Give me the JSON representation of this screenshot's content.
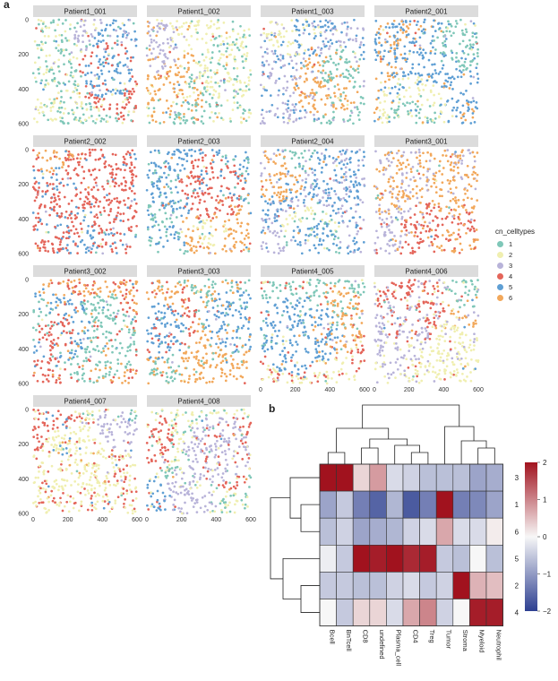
{
  "figure": {
    "panel_a_label": "a",
    "panel_b_label": "b"
  },
  "chart_data": [
    {
      "type": "scatter",
      "panel": "a",
      "description_of_content": "Spatial scatter of cells per sample colored by cellular neighborhood",
      "panels": [
        "Patient1_001",
        "Patient1_002",
        "Patient1_003",
        "Patient2_001",
        "Patient2_002",
        "Patient2_003",
        "Patient2_004",
        "Patient3_001",
        "Patient3_002",
        "Patient3_003",
        "Patient4_005",
        "Patient4_006",
        "Patient4_007",
        "Patient4_008"
      ],
      "y_ticks": [
        0,
        200,
        400,
        600
      ],
      "x_ticks": [
        0,
        200,
        400,
        600
      ],
      "xlim": [
        0,
        600
      ],
      "ylim": [
        0,
        600
      ],
      "legend": {
        "title": "cn_celltypes",
        "placement": "right",
        "entries": [
          {
            "label": "1",
            "color": "#7fc7b8"
          },
          {
            "label": "2",
            "color": "#f0efb0"
          },
          {
            "label": "3",
            "color": "#b8b3d9"
          },
          {
            "label": "4",
            "color": "#e4655a"
          },
          {
            "label": "5",
            "color": "#5f9fd4"
          },
          {
            "label": "6",
            "color": "#f2a85b"
          }
        ]
      }
    },
    {
      "type": "heatmap",
      "panel": "b",
      "columns": [
        "Bcell",
        "BnTcell",
        "CD8",
        "undefined",
        "Plasma_cell",
        "CD4",
        "Treg",
        "Tumor",
        "Stroma",
        "Myeloid",
        "Neutrophil"
      ],
      "rows": [
        "3",
        "1",
        "6",
        "5",
        "2",
        "4"
      ],
      "values": [
        [
          2.1,
          2.1,
          0.3,
          0.8,
          -0.3,
          -0.4,
          -0.6,
          -0.6,
          -0.6,
          -0.9,
          -0.8
        ],
        [
          -0.9,
          -0.5,
          -1.3,
          -1.6,
          -0.7,
          -1.7,
          -1.3,
          2.0,
          -1.3,
          -1.2,
          -0.9
        ],
        [
          -0.6,
          -0.4,
          -0.9,
          -0.8,
          -0.7,
          -0.4,
          -0.3,
          0.7,
          -0.3,
          -0.3,
          0.1
        ],
        [
          -0.1,
          -0.5,
          2.0,
          1.9,
          2.2,
          1.8,
          1.9,
          -0.5,
          -0.6,
          0.0,
          -0.6
        ],
        [
          -0.5,
          -0.5,
          -0.6,
          -0.6,
          -0.4,
          -0.3,
          -0.5,
          -0.4,
          2.0,
          0.6,
          0.5
        ],
        [
          0.0,
          -0.5,
          0.3,
          0.3,
          -0.3,
          0.7,
          1.0,
          -0.4,
          0.0,
          1.9,
          1.9
        ]
      ],
      "colorbar": {
        "ticks": [
          2,
          1,
          0,
          -1,
          -2
        ],
        "ticks_text": [
          "2",
          "1",
          "0",
          "−1",
          "−2"
        ],
        "range": [
          -2,
          2
        ]
      },
      "low_color": "#2d3f91",
      "mid_color": "#f7f7f7",
      "high_color": "#a1121e"
    }
  ]
}
